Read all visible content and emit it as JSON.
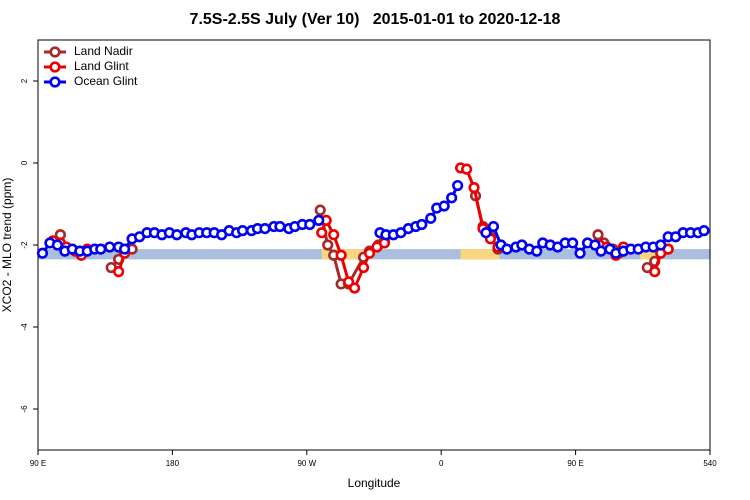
{
  "chart_data": {
    "type": "line",
    "title": "7.5S-2.5S July (Ver 10)   2015-01-01 to 2020-12-18",
    "x_label": "Longitude",
    "y_label": "XCO2 - MLO trend (ppm)",
    "xlim": [
      90,
      540
    ],
    "ylim": [
      -7,
      3
    ],
    "xticks": [
      {
        "value": 90,
        "label": "90 E"
      },
      180,
      {
        "value": 270,
        "label": "90 W"
      },
      {
        "value": 360,
        "label": "0"
      },
      {
        "value": 450,
        "label": "90 E"
      },
      540
    ],
    "yticks": [
      2,
      0,
      -2,
      -4,
      -6
    ],
    "legend": "top-left",
    "band": {
      "y": [
        -2.35,
        -2.1
      ],
      "segments": [
        {
          "x": [
            90,
            540
          ],
          "color": "#a9bfdd"
        },
        {
          "x": [
            280,
            307
          ],
          "color": "#f9d77e"
        },
        {
          "x": [
            373,
            399
          ],
          "color": "#f9d77e"
        },
        {
          "x": [
            493,
            507
          ],
          "color": "#f9d77e"
        }
      ]
    },
    "series": [
      {
        "name": "Land Nadir",
        "color": "#a52a2a",
        "x": [
          105,
          null,
          139,
          144,
          148,
          153,
          null,
          279,
          284,
          288,
          293,
          298,
          308,
          312,
          318,
          322,
          null,
          383,
          388,
          393,
          398,
          null,
          465,
          469,
          475,
          479,
          null,
          498,
          503,
          508,
          512
        ],
        "values": [
          -1.75,
          null,
          -2.55,
          -2.35,
          -2.1,
          -2.1,
          null,
          -1.15,
          -2.0,
          -2.25,
          -2.95,
          -2.95,
          -2.3,
          -2.15,
          -2.0,
          -1.9,
          null,
          -0.8,
          -1.55,
          -1.8,
          -2.1,
          null,
          -1.75,
          -1.95,
          -2.1,
          -2.2,
          null,
          -2.55,
          -2.4,
          -2.15,
          -2.1
        ]
      },
      {
        "name": "Land Glint",
        "color": "#ee0000",
        "x": [
          100,
          105,
          109,
          115,
          119,
          123,
          null,
          144,
          148,
          null,
          280,
          283,
          288,
          293,
          298,
          302,
          308,
          312,
          317,
          322,
          null,
          373,
          377,
          382,
          388,
          393,
          398,
          null,
          466,
          471,
          477,
          482,
          null,
          503,
          507,
          512
        ],
        "values": [
          -1.9,
          -1.95,
          -2.05,
          -2.15,
          -2.25,
          -2.1,
          null,
          -2.65,
          -2.2,
          null,
          -1.7,
          -1.4,
          -1.75,
          -2.25,
          -2.9,
          -3.05,
          -2.55,
          -2.2,
          -2.05,
          -1.95,
          null,
          -0.12,
          -0.15,
          -0.6,
          -1.6,
          -1.85,
          -2.05,
          null,
          -2.0,
          -2.05,
          -2.25,
          -2.05,
          null,
          -2.65,
          -2.2,
          -2.1
        ]
      },
      {
        "name": "Ocean Glint",
        "color": "#0000ee",
        "x": [
          93,
          98,
          103,
          108,
          113,
          118,
          123,
          128,
          132,
          138,
          144,
          148,
          153,
          158,
          163,
          168,
          173,
          178,
          183,
          189,
          193,
          198,
          203,
          208,
          213,
          218,
          223,
          227,
          233,
          237,
          242,
          248,
          252,
          258,
          262,
          267,
          272,
          278,
          null,
          319,
          323,
          328,
          333,
          338,
          343,
          347,
          353,
          357,
          362,
          367,
          371,
          null,
          390,
          395,
          400,
          404,
          410,
          414,
          419,
          424,
          428,
          433,
          438,
          443,
          448,
          453,
          458,
          463,
          467,
          473,
          477,
          482,
          487,
          492,
          497,
          502,
          507,
          512,
          517,
          522,
          527,
          532,
          536
        ],
        "values": [
          -2.2,
          -1.95,
          -2.0,
          -2.15,
          -2.1,
          -2.15,
          -2.15,
          -2.1,
          -2.1,
          -2.05,
          -2.05,
          -2.1,
          -1.85,
          -1.8,
          -1.7,
          -1.7,
          -1.75,
          -1.7,
          -1.75,
          -1.7,
          -1.75,
          -1.7,
          -1.7,
          -1.7,
          -1.75,
          -1.65,
          -1.7,
          -1.65,
          -1.65,
          -1.6,
          -1.6,
          -1.55,
          -1.55,
          -1.6,
          -1.55,
          -1.5,
          -1.5,
          -1.4,
          null,
          -1.7,
          -1.75,
          -1.75,
          -1.7,
          -1.6,
          -1.55,
          -1.5,
          -1.35,
          -1.1,
          -1.05,
          -0.85,
          -0.55,
          null,
          -1.7,
          -1.55,
          -2.0,
          -2.1,
          -2.05,
          -2.0,
          -2.1,
          -2.15,
          -1.95,
          -2.0,
          -2.05,
          -1.95,
          -1.95,
          -2.2,
          -1.95,
          -2.0,
          -2.15,
          -2.1,
          -2.2,
          -2.15,
          -2.1,
          -2.1,
          -2.05,
          -2.05,
          -2.0,
          -1.8,
          -1.8,
          -1.7,
          -1.7,
          -1.7,
          -1.65
        ]
      }
    ]
  }
}
